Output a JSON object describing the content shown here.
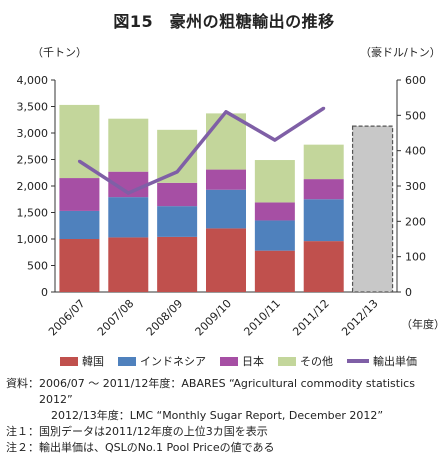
{
  "title": "図15　豪州の粗糖輸出の推移",
  "chart_data": {
    "type": "bar",
    "stacked": true,
    "categories": [
      "2006/07",
      "2007/08",
      "2008/09",
      "2009/10",
      "2010/11",
      "2011/12",
      "2012/13"
    ],
    "series": [
      {
        "name": "韓国",
        "color": "#c0504d",
        "values": [
          1000,
          1030,
          1040,
          1200,
          780,
          960,
          null
        ]
      },
      {
        "name": "インドネシア",
        "color": "#4f81bd",
        "values": [
          530,
          760,
          580,
          730,
          570,
          790,
          null
        ]
      },
      {
        "name": "日本",
        "color": "#a64fa4",
        "values": [
          620,
          480,
          440,
          380,
          340,
          380,
          null
        ]
      },
      {
        "name": "その他",
        "color": "#c3d69b",
        "values": [
          1380,
          1000,
          1000,
          1060,
          800,
          650,
          null
        ]
      }
    ],
    "total_2012_13": 3130,
    "line_series": {
      "name": "輸出単価",
      "color": "#7f5fa6",
      "axis": "right",
      "values": [
        370,
        280,
        340,
        510,
        430,
        520,
        null
      ]
    },
    "ylabel_left": "（千トン）",
    "ylabel_right": "（豪ドル/トン）",
    "xlabel": "（年度）",
    "ylim_left": [
      0,
      4000
    ],
    "ylim_right": [
      0,
      600
    ],
    "yticks_left": [
      "0",
      "500",
      "1,000",
      "1,500",
      "2,000",
      "2,500",
      "3,000",
      "3,500",
      "4,000"
    ],
    "yticks_right": [
      "0",
      "100",
      "200",
      "300",
      "400",
      "500",
      "600"
    ],
    "grid": false
  },
  "legend": [
    {
      "label": "韓国",
      "color": "#c0504d",
      "kind": "box"
    },
    {
      "label": "インドネシア",
      "color": "#4f81bd",
      "kind": "box"
    },
    {
      "label": "日本",
      "color": "#a64fa4",
      "kind": "box"
    },
    {
      "label": "その他",
      "color": "#c3d69b",
      "kind": "box"
    },
    {
      "label": "輸出単価",
      "color": "#7f5fa6",
      "kind": "line"
    }
  ],
  "notes": {
    "source_label": "資料：",
    "source_1": "2006/07 ～ 2011/12年度：ABARES “Agricultural commodity statistics 2012”",
    "source_2": "2012/13年度：LMC “Monthly Sugar Report, December 2012”",
    "note1_label": "注１：",
    "note1": "国別データは2011/12年度の上位3カ国を表示",
    "note2_label": "注２：",
    "note2": "輸出単価は、QSLのNo.1 Pool Priceの値である"
  }
}
